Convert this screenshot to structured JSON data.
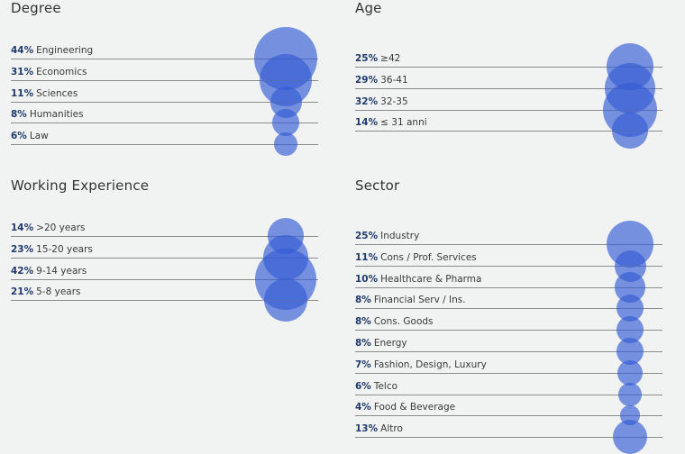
{
  "chart_data": [
    {
      "type": "bubble",
      "title": "Degree",
      "categories": [
        "Engineering",
        "Economics",
        "Sciences",
        "Humanities",
        "Law"
      ],
      "values": [
        44,
        31,
        11,
        8,
        6
      ],
      "labels": [
        "44%",
        "31%",
        "11%",
        "8%",
        "6%"
      ]
    },
    {
      "type": "bubble",
      "title": "Age",
      "categories": [
        "≥42",
        "36-41",
        "32-35",
        "≤ 31 anni"
      ],
      "values": [
        25,
        29,
        32,
        14
      ],
      "labels": [
        "25%",
        "29%",
        "32%",
        "14%"
      ]
    },
    {
      "type": "bubble",
      "title": "Working Experience",
      "categories": [
        ">20 years",
        "15-20 years",
        "9-14 years",
        "5-8 years"
      ],
      "values": [
        14,
        23,
        42,
        21
      ],
      "labels": [
        "14%",
        "23%",
        "42%",
        "21%"
      ]
    },
    {
      "type": "bubble",
      "title": "Sector",
      "categories": [
        "Industry",
        "Cons / Prof. Services",
        "Healthcare & Pharma",
        "Financial Serv / Ins.",
        "Cons. Goods",
        "Energy",
        "Fashion, Design, Luxury",
        "Telco",
        "Food & Beverage",
        "Altro"
      ],
      "values": [
        25,
        11,
        10,
        8,
        8,
        8,
        7,
        6,
        4,
        13
      ],
      "labels": [
        "25%",
        "11%",
        "10%",
        "8%",
        "8%",
        "8%",
        "7%",
        "6%",
        "4%",
        "13%"
      ]
    }
  ],
  "colors": {
    "bubble": "#325ad2",
    "percent_text": "#1f3a6e",
    "rule": "#8c8c8c",
    "background": "#f1f2f2"
  }
}
